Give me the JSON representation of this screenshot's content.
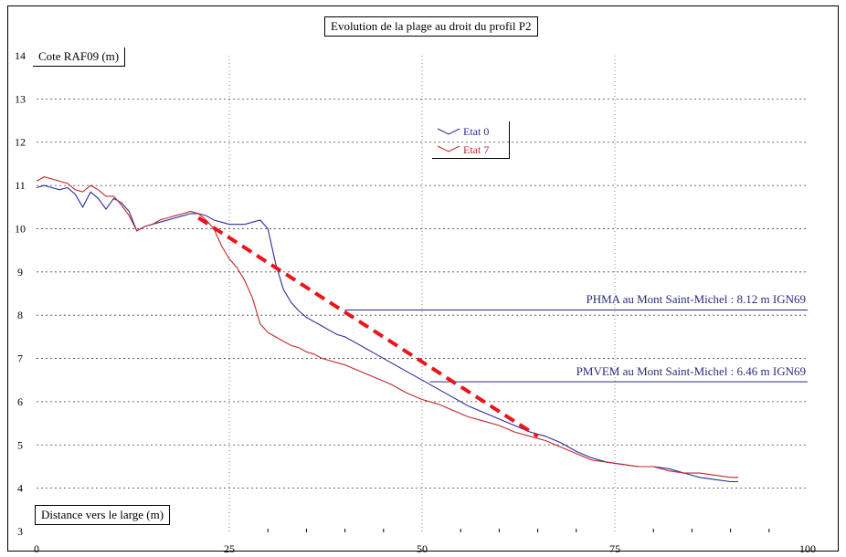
{
  "chart_data": {
    "type": "line",
    "title": "Evolution de la plage au droit du profil P2",
    "ylabel": "Cote RAF09 (m)",
    "xlabel": "Distance vers le large (m)",
    "xlim": [
      0,
      100
    ],
    "ylim": [
      3,
      14
    ],
    "x_ticks": [
      "0",
      "25",
      "50",
      "75",
      "100"
    ],
    "y_ticks": [
      "3",
      "4",
      "5",
      "6",
      "7",
      "8",
      "9",
      "10",
      "11",
      "12",
      "13",
      "14"
    ],
    "grid": "dotted",
    "legend_position": "center-top",
    "series": [
      {
        "name": "Etat 0",
        "color": "#2b2b9a",
        "x": [
          0,
          1,
          2,
          3,
          4,
          5,
          6,
          7,
          8,
          9,
          10,
          11,
          12,
          13,
          14,
          15,
          16,
          17,
          18,
          19,
          20,
          21,
          22,
          23,
          24,
          25,
          26,
          27,
          28,
          29,
          30,
          31,
          32,
          33,
          34,
          35,
          36,
          37,
          38,
          39,
          40,
          42,
          44,
          46,
          48,
          50,
          52,
          54,
          56,
          58,
          60,
          62,
          64,
          66,
          68,
          70,
          72,
          74,
          76,
          78,
          80,
          82,
          84,
          86,
          88,
          90,
          91
        ],
        "values": [
          10.95,
          11.0,
          10.95,
          10.9,
          10.95,
          10.8,
          10.5,
          10.85,
          10.7,
          10.45,
          10.7,
          10.6,
          10.4,
          9.95,
          10.05,
          10.1,
          10.15,
          10.2,
          10.25,
          10.3,
          10.35,
          10.35,
          10.3,
          10.2,
          10.15,
          10.1,
          10.1,
          10.1,
          10.15,
          10.2,
          10.0,
          9.2,
          8.6,
          8.3,
          8.1,
          7.95,
          7.85,
          7.75,
          7.65,
          7.55,
          7.5,
          7.3,
          7.1,
          6.9,
          6.7,
          6.5,
          6.3,
          6.1,
          5.9,
          5.75,
          5.6,
          5.45,
          5.3,
          5.2,
          5.05,
          4.85,
          4.7,
          4.6,
          4.55,
          4.5,
          4.5,
          4.45,
          4.35,
          4.25,
          4.2,
          4.15,
          4.15
        ]
      },
      {
        "name": "Etat 7",
        "color": "#c0282a",
        "x": [
          0,
          1,
          2,
          3,
          4,
          5,
          6,
          7,
          8,
          9,
          10,
          11,
          12,
          13,
          14,
          15,
          16,
          17,
          18,
          19,
          20,
          21,
          22,
          23,
          24,
          25,
          26,
          27,
          28,
          29,
          30,
          31,
          32,
          33,
          34,
          35,
          36,
          37,
          38,
          39,
          40,
          42,
          44,
          46,
          48,
          50,
          52,
          54,
          56,
          58,
          60,
          62,
          64,
          66,
          68,
          70,
          72,
          74,
          76,
          78,
          80,
          82,
          84,
          86,
          88,
          90,
          91
        ],
        "values": [
          11.1,
          11.2,
          11.15,
          11.1,
          11.05,
          10.9,
          10.85,
          11.0,
          10.9,
          10.75,
          10.75,
          10.55,
          10.3,
          9.95,
          10.05,
          10.1,
          10.2,
          10.25,
          10.3,
          10.35,
          10.4,
          10.35,
          10.2,
          10.0,
          9.6,
          9.3,
          9.1,
          8.8,
          8.4,
          7.8,
          7.6,
          7.5,
          7.4,
          7.3,
          7.25,
          7.15,
          7.1,
          7.0,
          6.95,
          6.9,
          6.85,
          6.7,
          6.55,
          6.4,
          6.2,
          6.05,
          5.95,
          5.8,
          5.65,
          5.55,
          5.45,
          5.3,
          5.2,
          5.1,
          4.95,
          4.8,
          4.65,
          4.6,
          4.55,
          4.5,
          4.5,
          4.4,
          4.35,
          4.35,
          4.3,
          4.25,
          4.25
        ]
      }
    ],
    "trend_line": {
      "color": "#e8161a",
      "x": [
        21,
        65
      ],
      "values": [
        10.25,
        5.2
      ]
    },
    "reference_lines": [
      {
        "label": "PHMA au Mont Saint-Michel : 8.12 m IGN69",
        "value": 8.12,
        "x_start": 40,
        "x_end": 100,
        "color": "#2a2a80"
      },
      {
        "label": "PMVEM au Mont Saint-Michel : 6.46 m IGN69",
        "value": 6.46,
        "x_start": 51,
        "x_end": 100,
        "color": "#2a2a80"
      }
    ]
  }
}
